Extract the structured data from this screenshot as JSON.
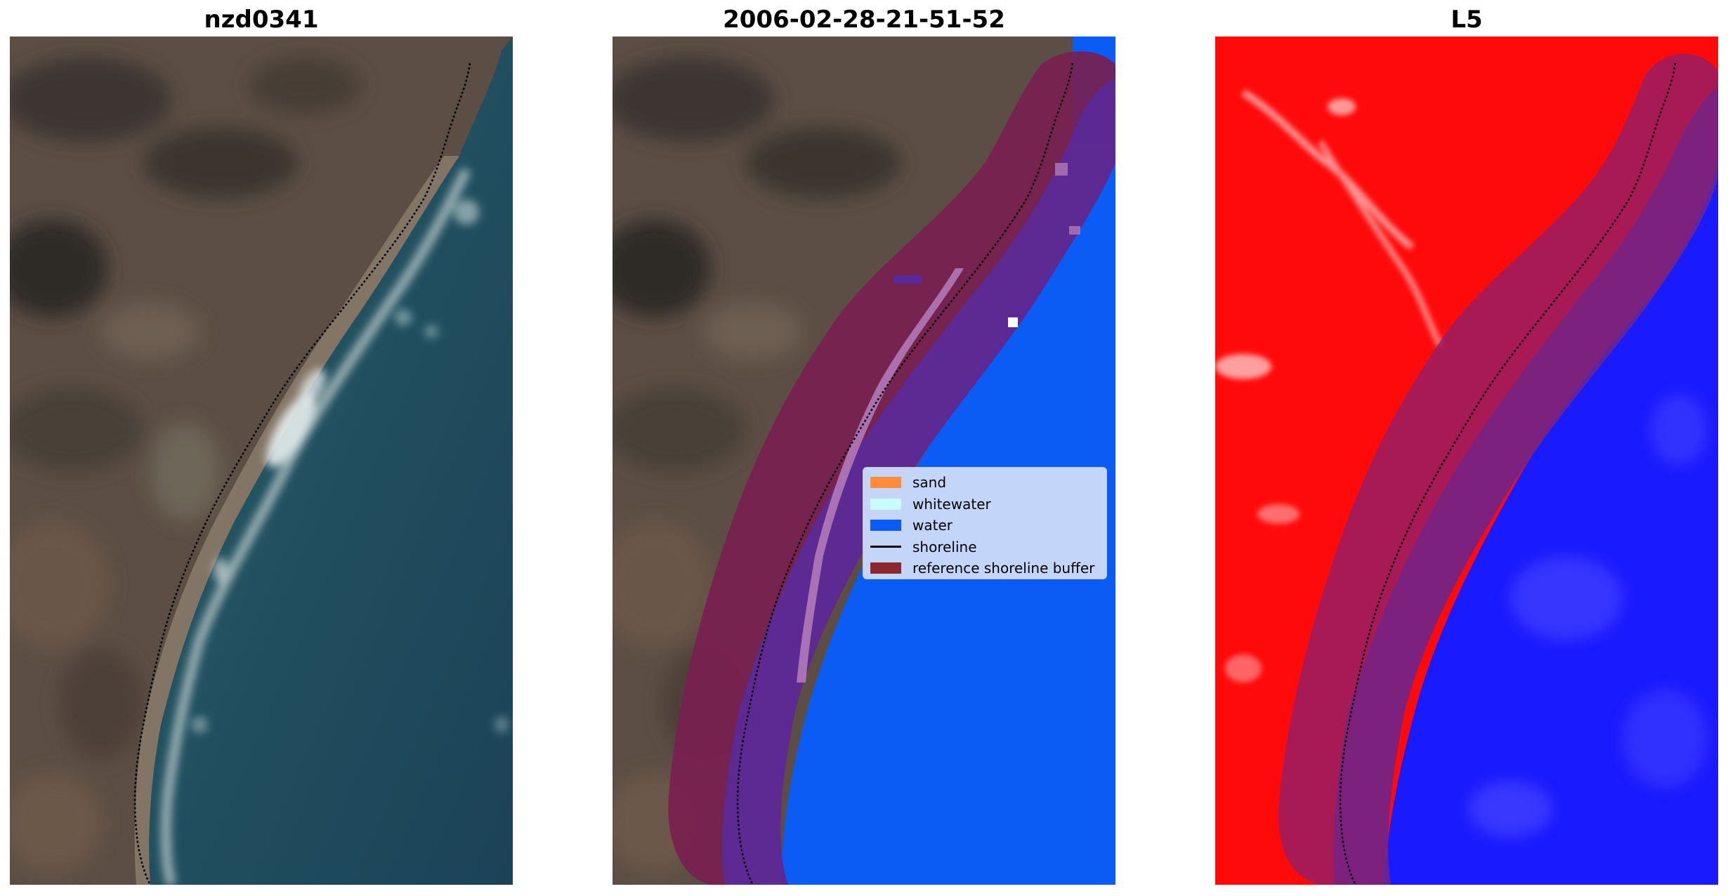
{
  "panels": [
    {
      "title": "nzd0341"
    },
    {
      "title": "2006-02-28-21-51-52"
    },
    {
      "title": "L5"
    }
  ],
  "legend": {
    "items": [
      {
        "label": "sand",
        "color": "#ff8c3c",
        "kind": "patch"
      },
      {
        "label": "whitewater",
        "color": "#c8fcff",
        "kind": "patch"
      },
      {
        "label": "water",
        "color": "#0a5cf5",
        "kind": "patch"
      },
      {
        "label": "shoreline",
        "color": "#000000",
        "kind": "line"
      },
      {
        "label": "reference shoreline buffer",
        "color": "#8c2630",
        "kind": "patch"
      }
    ]
  },
  "colors": {
    "land": "#5e5045",
    "ocean": "#1e4c5c",
    "water_class": "#0a5cf5",
    "buffer": "#7a2050",
    "buffer_overlap": "#5a2a9a",
    "index_land": "#ff0000",
    "index_water": "#1a1aff"
  }
}
